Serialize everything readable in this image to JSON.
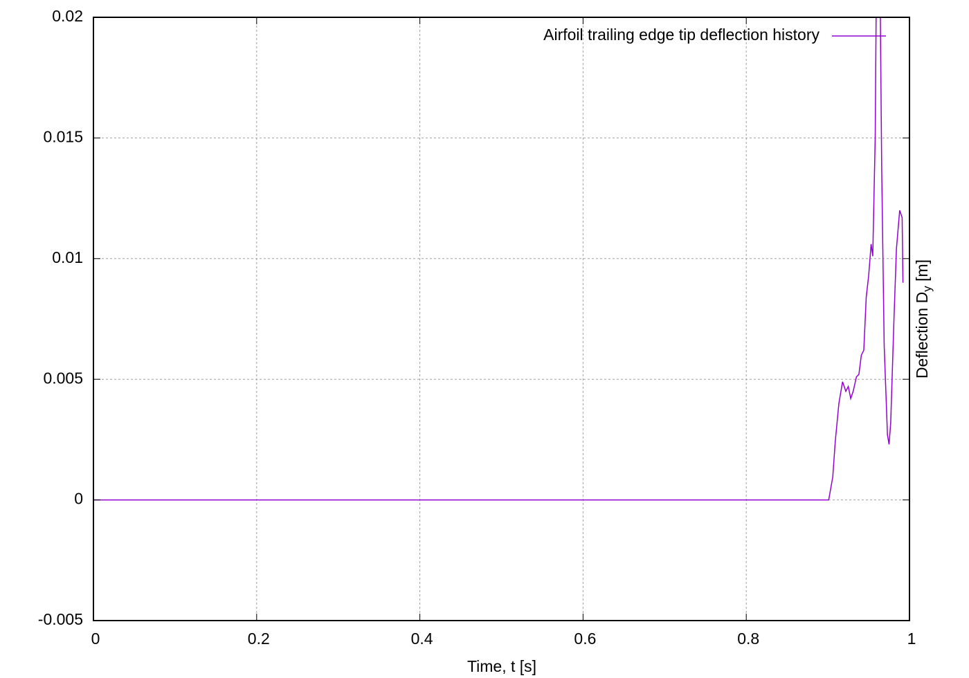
{
  "chart_data": {
    "type": "line",
    "x_label": "Time, t [s]",
    "y_label": [
      "Deflection D",
      "y",
      " [m]"
    ],
    "xlim": [
      0,
      1
    ],
    "ylim": [
      -0.005,
      0.02
    ],
    "xticks": [
      0,
      0.2,
      0.4,
      0.6,
      0.8,
      1
    ],
    "yticks": [
      -0.005,
      0,
      0.005,
      0.01,
      0.015,
      0.02
    ],
    "grid": true,
    "legend": "top-right",
    "series": [
      {
        "name": "Airfoil trailing edge tip deflection history",
        "color": "#9400d3",
        "x": [
          0,
          0.901,
          0.906,
          0.909,
          0.9135,
          0.918,
          0.922,
          0.925,
          0.928,
          0.931,
          0.935,
          0.938,
          0.941,
          0.944,
          0.947,
          0.95,
          0.953,
          0.955,
          0.958,
          0.96,
          0.9635,
          0.966,
          0.969,
          0.973,
          0.975,
          0.977,
          0.981,
          0.984,
          0.988,
          0.991,
          0.992
        ],
        "values": [
          0,
          0,
          0.00095,
          0.0024,
          0.004,
          0.0049,
          0.0045,
          0.0047,
          0.0042,
          0.0045,
          0.0051,
          0.0052,
          0.006,
          0.0062,
          0.0084,
          0.0093,
          0.0106,
          0.0101,
          0.015,
          0.024,
          0.023,
          0.0136,
          0.0064,
          0.0027,
          0.0023,
          0.0032,
          0.0075,
          0.0104,
          0.012,
          0.0117,
          0.009
        ]
      }
    ]
  }
}
